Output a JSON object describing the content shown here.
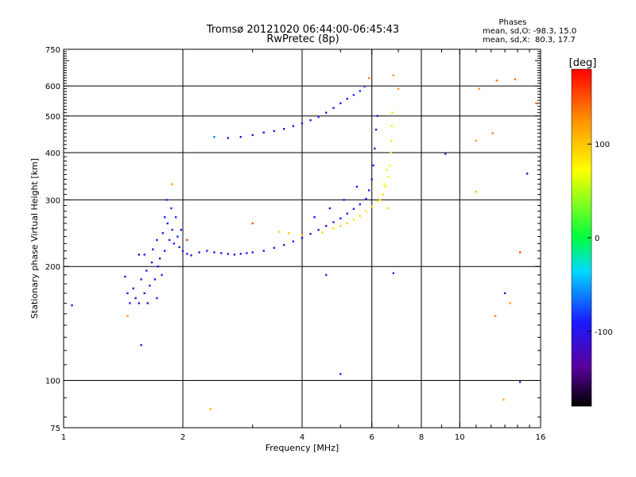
{
  "chart_data": {
    "type": "scatter",
    "title": "Tromsø 20121020 06:44:00-06:45:43",
    "subtitle": "RwPretec (8p)",
    "xlabel": "Frequency [MHz]",
    "ylabel": "Stationary phase Virtual Height [km]",
    "xscale": "log",
    "yscale": "log",
    "xlim": [
      1,
      16
    ],
    "ylim": [
      75,
      750
    ],
    "grid": true,
    "x_ticks": [
      1,
      2,
      4,
      6,
      8,
      10,
      16
    ],
    "y_ticks": [
      75,
      100,
      200,
      300,
      400,
      500,
      600,
      750
    ],
    "x_gridlines": [
      2,
      4,
      6,
      8,
      10
    ],
    "y_gridlines": [
      100,
      200,
      300,
      400,
      500,
      600
    ],
    "legend": {
      "title": "Phases",
      "lines": [
        "mean, sd,O: -98.3, 15.0",
        "mean, sd,X:  80.3, 17.7"
      ]
    },
    "colorbar": {
      "label": "[deg]",
      "range": [
        -180,
        180
      ],
      "ticks": [
        100,
        0,
        -100
      ],
      "colormap": "rainbow"
    },
    "series": [
      {
        "name": "O-mode",
        "color_by_phase": true,
        "points": [
          {
            "x": 1.05,
            "y": 158,
            "p": -100
          },
          {
            "x": 1.43,
            "y": 188,
            "p": -105
          },
          {
            "x": 1.45,
            "y": 170,
            "p": -100
          },
          {
            "x": 1.47,
            "y": 160,
            "p": -95
          },
          {
            "x": 1.5,
            "y": 175,
            "p": -110
          },
          {
            "x": 1.52,
            "y": 165,
            "p": -100
          },
          {
            "x": 1.55,
            "y": 160,
            "p": -95
          },
          {
            "x": 1.55,
            "y": 215,
            "p": -105
          },
          {
            "x": 1.57,
            "y": 185,
            "p": -98
          },
          {
            "x": 1.6,
            "y": 170,
            "p": -100
          },
          {
            "x": 1.6,
            "y": 215,
            "p": -100
          },
          {
            "x": 1.62,
            "y": 195,
            "p": -95
          },
          {
            "x": 1.63,
            "y": 160,
            "p": -105
          },
          {
            "x": 1.65,
            "y": 178,
            "p": -98
          },
          {
            "x": 1.67,
            "y": 205,
            "p": -100
          },
          {
            "x": 1.68,
            "y": 222,
            "p": -102
          },
          {
            "x": 1.7,
            "y": 185,
            "p": -96
          },
          {
            "x": 1.72,
            "y": 165,
            "p": -100
          },
          {
            "x": 1.72,
            "y": 235,
            "p": -100
          },
          {
            "x": 1.73,
            "y": 200,
            "p": -90
          },
          {
            "x": 1.75,
            "y": 210,
            "p": -95
          },
          {
            "x": 1.77,
            "y": 190,
            "p": -100
          },
          {
            "x": 1.78,
            "y": 245,
            "p": -95
          },
          {
            "x": 1.8,
            "y": 270,
            "p": -90
          },
          {
            "x": 1.8,
            "y": 220,
            "p": -92
          },
          {
            "x": 1.82,
            "y": 300,
            "p": -85
          },
          {
            "x": 1.83,
            "y": 260,
            "p": -88
          },
          {
            "x": 1.85,
            "y": 235,
            "p": -90
          },
          {
            "x": 1.87,
            "y": 285,
            "p": -82
          },
          {
            "x": 1.88,
            "y": 250,
            "p": -88
          },
          {
            "x": 1.9,
            "y": 230,
            "p": -90
          },
          {
            "x": 1.92,
            "y": 270,
            "p": -85
          },
          {
            "x": 1.94,
            "y": 240,
            "p": -88
          },
          {
            "x": 1.96,
            "y": 225,
            "p": -92
          },
          {
            "x": 1.98,
            "y": 250,
            "p": -90
          },
          {
            "x": 2.0,
            "y": 220,
            "p": -95
          },
          {
            "x": 2.05,
            "y": 216,
            "p": -100
          },
          {
            "x": 2.1,
            "y": 214,
            "p": -95
          },
          {
            "x": 2.2,
            "y": 218,
            "p": -92
          },
          {
            "x": 2.3,
            "y": 220,
            "p": -90
          },
          {
            "x": 2.4,
            "y": 218,
            "p": -92
          },
          {
            "x": 2.5,
            "y": 217,
            "p": -95
          },
          {
            "x": 2.6,
            "y": 216,
            "p": -98
          },
          {
            "x": 2.7,
            "y": 215,
            "p": -100
          },
          {
            "x": 2.8,
            "y": 216,
            "p": -102
          },
          {
            "x": 2.9,
            "y": 217,
            "p": -104
          },
          {
            "x": 3.0,
            "y": 218,
            "p": -105
          },
          {
            "x": 3.2,
            "y": 220,
            "p": -106
          },
          {
            "x": 3.4,
            "y": 224,
            "p": -108
          },
          {
            "x": 3.6,
            "y": 228,
            "p": -108
          },
          {
            "x": 3.8,
            "y": 233,
            "p": -106
          },
          {
            "x": 4.0,
            "y": 238,
            "p": -104
          },
          {
            "x": 4.2,
            "y": 244,
            "p": -102
          },
          {
            "x": 4.4,
            "y": 250,
            "p": -100
          },
          {
            "x": 4.6,
            "y": 256,
            "p": -98
          },
          {
            "x": 4.8,
            "y": 262,
            "p": -96
          },
          {
            "x": 5.0,
            "y": 268,
            "p": -95
          },
          {
            "x": 5.2,
            "y": 276,
            "p": -95
          },
          {
            "x": 5.4,
            "y": 284,
            "p": -96
          },
          {
            "x": 5.6,
            "y": 292,
            "p": -98
          },
          {
            "x": 5.8,
            "y": 302,
            "p": -100
          },
          {
            "x": 5.9,
            "y": 318,
            "p": -102
          },
          {
            "x": 6.0,
            "y": 340,
            "p": -104
          },
          {
            "x": 6.05,
            "y": 370,
            "p": -106
          },
          {
            "x": 6.1,
            "y": 410,
            "p": -108
          },
          {
            "x": 6.15,
            "y": 460,
            "p": -110
          },
          {
            "x": 6.2,
            "y": 500,
            "p": -108
          },
          {
            "x": 4.3,
            "y": 270,
            "p": -100
          },
          {
            "x": 4.7,
            "y": 285,
            "p": -98
          },
          {
            "x": 5.1,
            "y": 300,
            "p": -96
          },
          {
            "x": 5.5,
            "y": 325,
            "p": -95
          },
          {
            "x": 2.6,
            "y": 437,
            "p": -95
          },
          {
            "x": 2.8,
            "y": 440,
            "p": -98
          },
          {
            "x": 3.0,
            "y": 445,
            "p": -100
          },
          {
            "x": 3.2,
            "y": 452,
            "p": -104
          },
          {
            "x": 3.4,
            "y": 456,
            "p": -106
          },
          {
            "x": 3.6,
            "y": 462,
            "p": -106
          },
          {
            "x": 3.8,
            "y": 470,
            "p": -104
          },
          {
            "x": 4.0,
            "y": 478,
            "p": -100
          },
          {
            "x": 4.2,
            "y": 487,
            "p": -98
          },
          {
            "x": 4.4,
            "y": 497,
            "p": -96
          },
          {
            "x": 4.6,
            "y": 510,
            "p": -94
          },
          {
            "x": 4.8,
            "y": 525,
            "p": -92
          },
          {
            "x": 5.0,
            "y": 540,
            "p": -90
          },
          {
            "x": 5.2,
            "y": 555,
            "p": -88
          },
          {
            "x": 5.4,
            "y": 568,
            "p": -86
          },
          {
            "x": 5.6,
            "y": 582,
            "p": -84
          },
          {
            "x": 5.75,
            "y": 598,
            "p": -82
          },
          {
            "x": 2.4,
            "y": 440,
            "p": -60
          },
          {
            "x": 9.2,
            "y": 397,
            "p": -105
          },
          {
            "x": 5.0,
            "y": 104,
            "p": -100
          },
          {
            "x": 14.2,
            "y": 99,
            "p": -110
          },
          {
            "x": 14.8,
            "y": 352,
            "p": -115
          },
          {
            "x": 1.57,
            "y": 124,
            "p": -110
          },
          {
            "x": 4.6,
            "y": 190,
            "p": -100
          },
          {
            "x": 6.8,
            "y": 192,
            "p": -95
          },
          {
            "x": 13.0,
            "y": 170,
            "p": -110
          }
        ]
      },
      {
        "name": "X-mode",
        "color_by_phase": true,
        "points": [
          {
            "x": 3.5,
            "y": 247,
            "p": 95
          },
          {
            "x": 3.7,
            "y": 245,
            "p": 100
          },
          {
            "x": 4.0,
            "y": 242,
            "p": 105
          },
          {
            "x": 4.5,
            "y": 246,
            "p": 95
          },
          {
            "x": 4.8,
            "y": 252,
            "p": 90
          },
          {
            "x": 5.0,
            "y": 256,
            "p": 92
          },
          {
            "x": 5.2,
            "y": 260,
            "p": 95
          },
          {
            "x": 5.4,
            "y": 266,
            "p": 90
          },
          {
            "x": 5.6,
            "y": 272,
            "p": 88
          },
          {
            "x": 5.8,
            "y": 280,
            "p": 86
          },
          {
            "x": 6.0,
            "y": 288,
            "p": 85
          },
          {
            "x": 6.2,
            "y": 298,
            "p": 84
          },
          {
            "x": 6.4,
            "y": 310,
            "p": 82
          },
          {
            "x": 6.5,
            "y": 325,
            "p": 80
          },
          {
            "x": 6.6,
            "y": 345,
            "p": 80
          },
          {
            "x": 6.65,
            "y": 370,
            "p": 78
          },
          {
            "x": 6.7,
            "y": 400,
            "p": 80
          },
          {
            "x": 6.72,
            "y": 430,
            "p": 82
          },
          {
            "x": 6.74,
            "y": 470,
            "p": 84
          },
          {
            "x": 6.76,
            "y": 510,
            "p": 86
          },
          {
            "x": 6.3,
            "y": 300,
            "p": 75
          },
          {
            "x": 6.45,
            "y": 330,
            "p": 70
          },
          {
            "x": 6.55,
            "y": 360,
            "p": 72
          },
          {
            "x": 6.6,
            "y": 285,
            "p": 85
          },
          {
            "x": 6.8,
            "y": 640,
            "p": 120
          },
          {
            "x": 7.0,
            "y": 590,
            "p": 125
          },
          {
            "x": 5.9,
            "y": 630,
            "p": 130
          },
          {
            "x": 11.2,
            "y": 590,
            "p": 125
          },
          {
            "x": 12.4,
            "y": 620,
            "p": 135
          },
          {
            "x": 13.8,
            "y": 625,
            "p": 140
          },
          {
            "x": 15.6,
            "y": 540,
            "p": 150
          },
          {
            "x": 11.0,
            "y": 430,
            "p": 120
          },
          {
            "x": 12.1,
            "y": 450,
            "p": 130
          },
          {
            "x": 11.0,
            "y": 315,
            "p": 105
          },
          {
            "x": 13.4,
            "y": 160,
            "p": 120
          },
          {
            "x": 12.3,
            "y": 148,
            "p": 130
          },
          {
            "x": 12.9,
            "y": 89,
            "p": 110
          },
          {
            "x": 2.35,
            "y": 84,
            "p": 110
          },
          {
            "x": 1.88,
            "y": 330,
            "p": 120
          },
          {
            "x": 1.45,
            "y": 148,
            "p": 120
          },
          {
            "x": 14.2,
            "y": 218,
            "p": 150
          },
          {
            "x": 3.0,
            "y": 260,
            "p": 150
          },
          {
            "x": 2.05,
            "y": 235,
            "p": 160
          }
        ]
      }
    ]
  }
}
